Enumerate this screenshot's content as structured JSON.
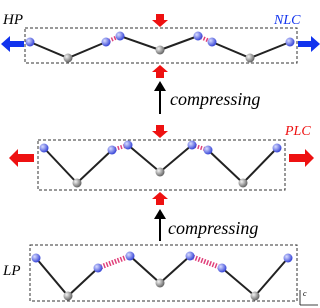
{
  "states": [
    {
      "label": "HP",
      "note": "NLC"
    },
    {
      "label": "PLC"
    },
    {
      "label": "LP"
    }
  ],
  "arrows": [
    {
      "label": "compressing"
    },
    {
      "label": "compressing"
    }
  ],
  "axis": {
    "label": "c"
  }
}
